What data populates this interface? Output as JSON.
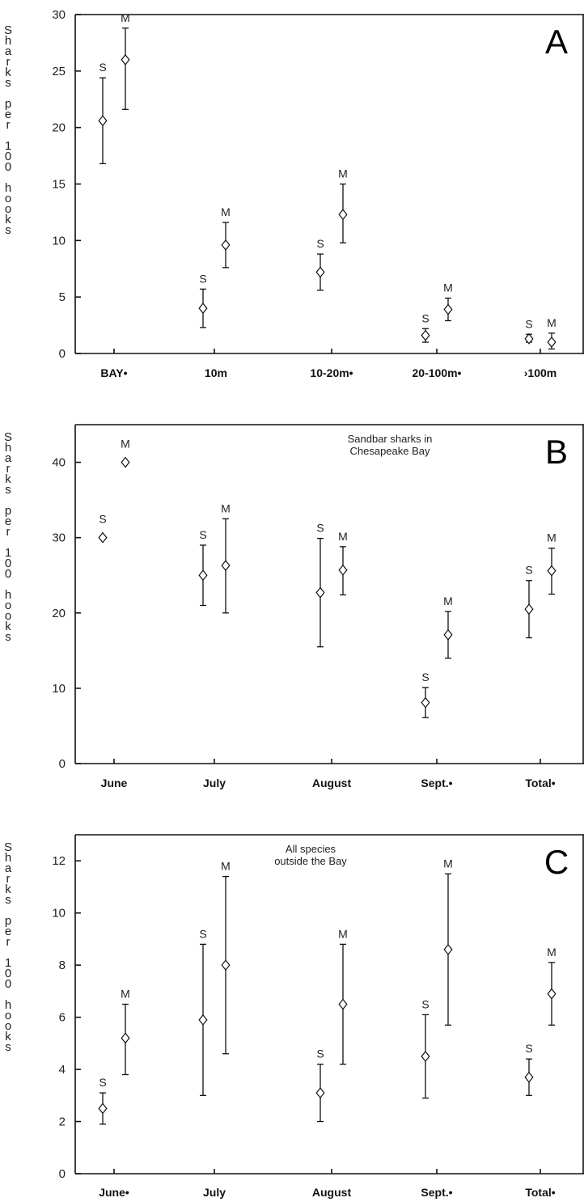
{
  "y_axis_label": "Sharks per 100 hooks",
  "chart_data": [
    {
      "type": "scatter",
      "panel_label": "A",
      "annotation": "",
      "ylim": [
        0,
        30
      ],
      "yticks": [
        0,
        5,
        10,
        15,
        20,
        25,
        30
      ],
      "ylabel": "Sharks per 100 hooks",
      "categories": [
        "BAY•",
        " 10m",
        "10-20m•",
        "20-100m•",
        "›100m"
      ],
      "series": [
        {
          "name": "S",
          "values": [
            20.6,
            4.0,
            7.2,
            1.6,
            1.3
          ],
          "lower": [
            16.8,
            2.3,
            5.6,
            1.0,
            1.0
          ],
          "upper": [
            24.4,
            5.7,
            8.8,
            2.2,
            1.7
          ]
        },
        {
          "name": "M",
          "values": [
            26.0,
            9.6,
            12.3,
            3.9,
            1.0
          ],
          "lower": [
            21.6,
            7.6,
            9.8,
            2.9,
            0.4
          ],
          "upper": [
            28.8,
            11.6,
            15.0,
            4.9,
            1.8
          ]
        }
      ]
    },
    {
      "type": "scatter",
      "panel_label": "B",
      "annotation": [
        "Sandbar sharks in",
        "Chesapeake Bay"
      ],
      "ylim": [
        0,
        45
      ],
      "yticks": [
        0,
        10,
        20,
        30,
        40
      ],
      "ylabel": "Sharks per 100 hooks",
      "categories": [
        "June",
        "July",
        "August",
        "Sept.•",
        "Total•"
      ],
      "series": [
        {
          "name": "S",
          "values": [
            30.0,
            25.0,
            22.7,
            8.1,
            20.5
          ],
          "lower": [
            null,
            21.0,
            15.5,
            6.1,
            16.7
          ],
          "upper": [
            null,
            29.0,
            29.9,
            10.1,
            24.3
          ]
        },
        {
          "name": "M",
          "values": [
            40.0,
            26.3,
            25.7,
            17.1,
            25.6
          ],
          "lower": [
            null,
            20.0,
            22.4,
            14.0,
            22.5
          ],
          "upper": [
            null,
            32.5,
            28.8,
            20.2,
            28.6
          ]
        }
      ]
    },
    {
      "type": "scatter",
      "panel_label": "C",
      "annotation": [
        "All species",
        "outside the Bay"
      ],
      "ylim": [
        0,
        13
      ],
      "yticks": [
        0,
        2,
        4,
        6,
        8,
        10,
        12
      ],
      "ylabel": "Sharks per 100 hooks",
      "categories": [
        "June•",
        "July",
        "August",
        "Sept.•",
        "Total•"
      ],
      "series": [
        {
          "name": "S",
          "values": [
            2.5,
            5.9,
            3.1,
            4.5,
            3.7
          ],
          "lower": [
            1.9,
            3.0,
            2.0,
            2.9,
            3.0
          ],
          "upper": [
            3.1,
            8.8,
            4.2,
            6.1,
            4.4
          ]
        },
        {
          "name": "M",
          "values": [
            5.2,
            8.0,
            6.5,
            8.6,
            6.9
          ],
          "lower": [
            3.8,
            4.6,
            4.2,
            5.7,
            5.7
          ],
          "upper": [
            6.5,
            11.4,
            8.8,
            11.5,
            8.1
          ]
        }
      ]
    }
  ]
}
